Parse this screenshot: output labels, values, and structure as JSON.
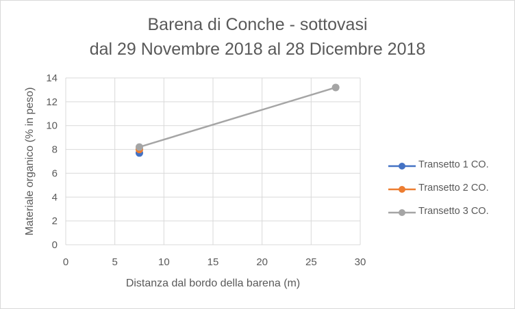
{
  "chart_data": {
    "type": "scatter",
    "title": [
      "Barena di Conche - sottovasi",
      "dal 29 Novembre 2018 al 28 Dicembre 2018"
    ],
    "xlabel": "Distanza dal bordo della barena (m)",
    "ylabel": "Materiale organico (% in peso)",
    "xlim": [
      0,
      30
    ],
    "ylim": [
      0,
      14
    ],
    "xticks": [
      0,
      5,
      10,
      15,
      20,
      25,
      30
    ],
    "yticks": [
      0,
      2,
      4,
      6,
      8,
      10,
      12,
      14
    ],
    "grid": "horizontal and vertical",
    "legend_position": "right",
    "series": [
      {
        "name": "Transetto 1 CO.",
        "color": "#4472c4",
        "points": [
          {
            "x": 7.5,
            "y": 7.7
          }
        ]
      },
      {
        "name": "Transetto 2 CO.",
        "color": "#ed7d31",
        "points": [
          {
            "x": 7.5,
            "y": 8.0
          }
        ]
      },
      {
        "name": "Transetto 3 CO.",
        "color": "#a5a5a5",
        "points": [
          {
            "x": 7.5,
            "y": 8.2
          },
          {
            "x": 27.5,
            "y": 13.2
          }
        ]
      }
    ]
  }
}
